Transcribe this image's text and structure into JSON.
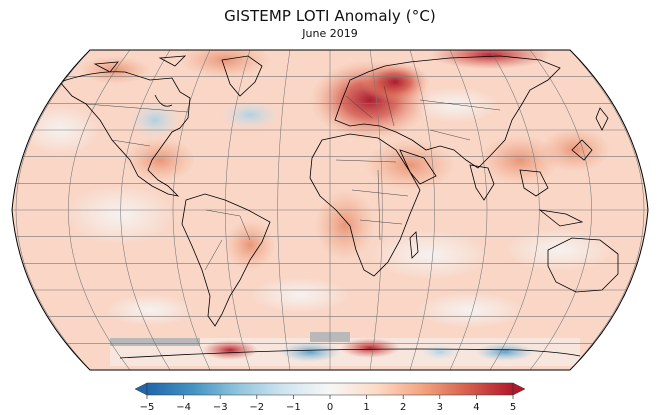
{
  "header": {
    "title": "GISTEMP LOTI Anomaly (°C)",
    "subtitle": "June 2019"
  },
  "colorbar": {
    "min": -5,
    "max": 5,
    "ticks": [
      "−5",
      "−4",
      "−3",
      "−2",
      "−1",
      "0",
      "1",
      "2",
      "3",
      "4",
      "5"
    ],
    "extend": "both",
    "colormap": "RdBu_r",
    "colors": [
      "#2166ac",
      "#4393c3",
      "#92c5de",
      "#d1e5f0",
      "#f7f7f7",
      "#fddbc7",
      "#f4a582",
      "#d6604d",
      "#b2182b"
    ]
  },
  "map": {
    "projection": "Robinson",
    "ocean_base_color": "#f9d6c6",
    "graticule": true,
    "coastlines_color": "#000000"
  }
}
